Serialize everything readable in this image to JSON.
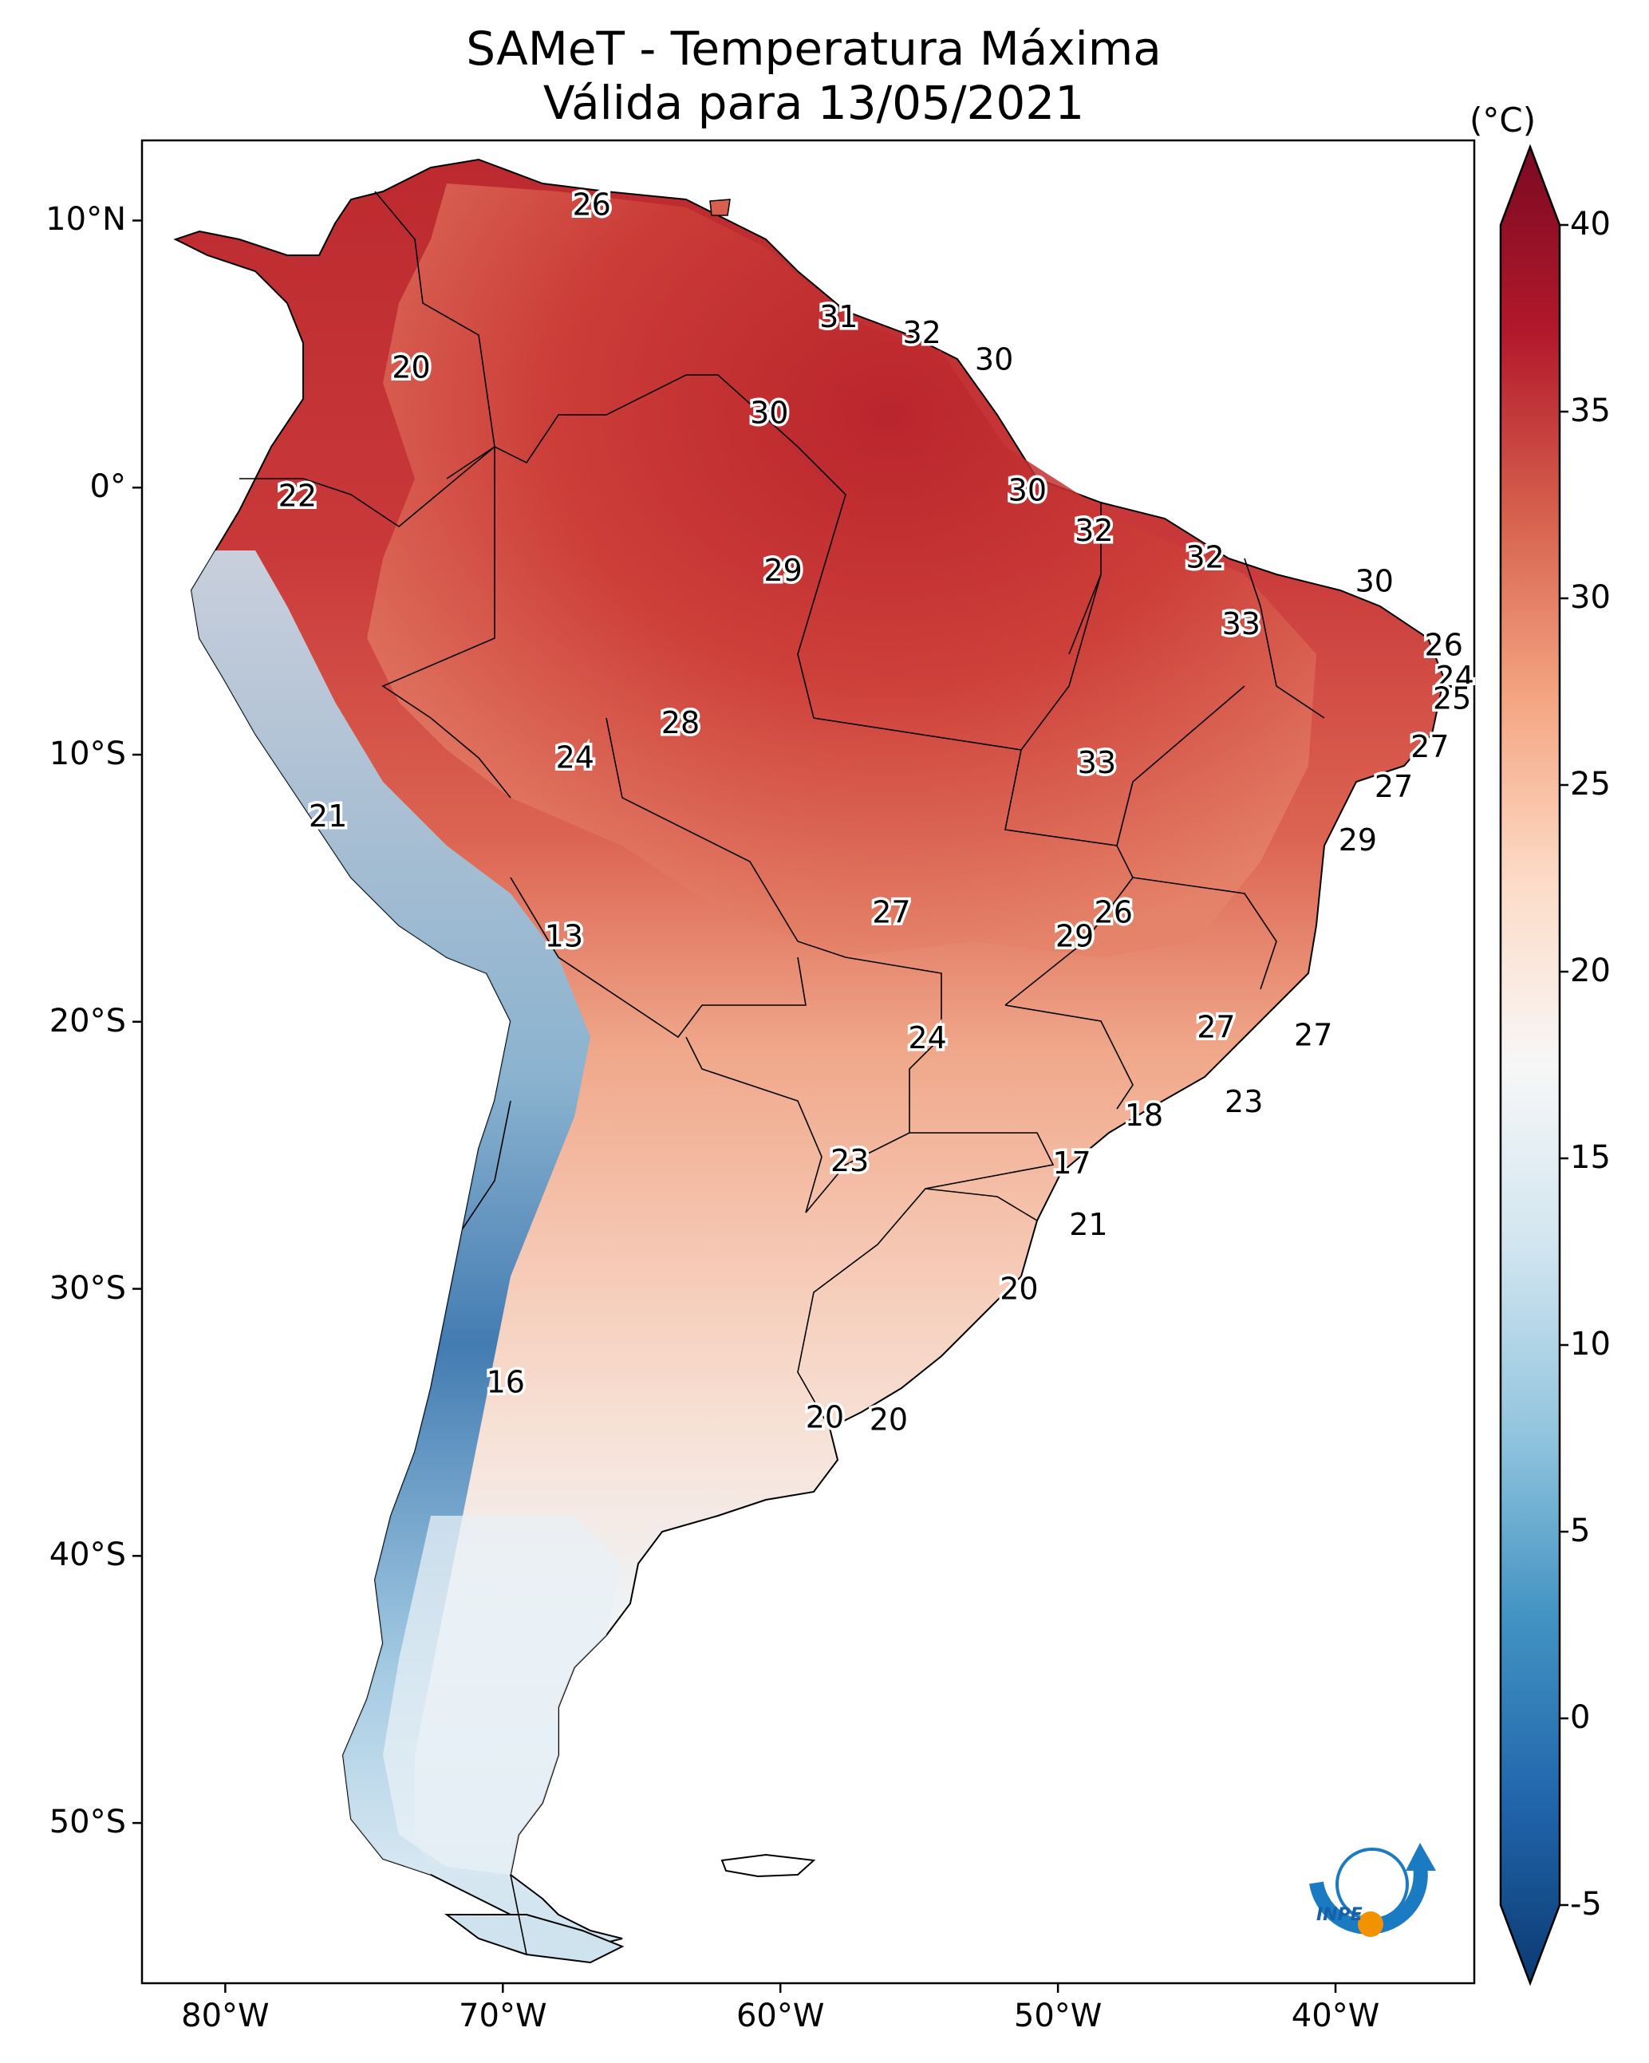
{
  "title": {
    "line1": "SAMeT - Temperatura Máxima",
    "line2": "Válida para 13/05/2021"
  },
  "colorbar": {
    "units": "(°C)",
    "ticks": [
      40,
      35,
      30,
      25,
      20,
      15,
      10,
      5,
      0,
      -5
    ],
    "range": [
      -5,
      40
    ],
    "colors": [
      "#08306b",
      "#2166ac",
      "#4393c3",
      "#92c5de",
      "#d1e5f0",
      "#f7f7f7",
      "#fddbc7",
      "#f4a582",
      "#d6604d",
      "#b2182b",
      "#67001f"
    ]
  },
  "axes": {
    "lon_labels": [
      "80°W",
      "70°W",
      "60°W",
      "50°W",
      "40°W"
    ],
    "lat_labels": [
      "10°N",
      "0°",
      "10°S",
      "20°S",
      "30°S",
      "40°S",
      "50°S"
    ],
    "lon_values": [
      -80,
      -70,
      -60,
      -50,
      -40
    ],
    "lat_values": [
      10,
      0,
      -10,
      -20,
      -30,
      -40,
      -50
    ],
    "extent": {
      "lon": [
        -83,
        -35
      ],
      "lat": [
        -56,
        13
      ]
    }
  },
  "value_labels": [
    {
      "text": "26",
      "lon": -66.8,
      "lat": 10.6
    },
    {
      "text": "31",
      "lon": -57.9,
      "lat": 6.4
    },
    {
      "text": "32",
      "lon": -54.9,
      "lat": 5.8
    },
    {
      "text": "30",
      "lon": -52.3,
      "lat": 4.8
    },
    {
      "text": "20",
      "lon": -73.3,
      "lat": 4.5
    },
    {
      "text": "30",
      "lon": -60.4,
      "lat": 2.8
    },
    {
      "text": "22",
      "lon": -77.4,
      "lat": -0.3
    },
    {
      "text": "30",
      "lon": -51.1,
      "lat": -0.1
    },
    {
      "text": "32",
      "lon": -48.7,
      "lat": -1.6
    },
    {
      "text": "32",
      "lon": -44.7,
      "lat": -2.6
    },
    {
      "text": "29",
      "lon": -59.9,
      "lat": -3.1
    },
    {
      "text": "30",
      "lon": -38.6,
      "lat": -3.5
    },
    {
      "text": "33",
      "lon": -43.4,
      "lat": -5.1
    },
    {
      "text": "26",
      "lon": -36.1,
      "lat": -5.9
    },
    {
      "text": "24",
      "lon": -35.7,
      "lat": -7.1
    },
    {
      "text": "25",
      "lon": -35.8,
      "lat": -7.9
    },
    {
      "text": "28",
      "lon": -63.6,
      "lat": -8.8
    },
    {
      "text": "27",
      "lon": -36.6,
      "lat": -9.7
    },
    {
      "text": "24",
      "lon": -67.4,
      "lat": -10.1
    },
    {
      "text": "33",
      "lon": -48.6,
      "lat": -10.3
    },
    {
      "text": "27",
      "lon": -37.9,
      "lat": -11.2
    },
    {
      "text": "21",
      "lon": -76.3,
      "lat": -12.3
    },
    {
      "text": "29",
      "lon": -39.2,
      "lat": -13.2
    },
    {
      "text": "27",
      "lon": -56.0,
      "lat": -15.9
    },
    {
      "text": "26",
      "lon": -48.0,
      "lat": -15.9
    },
    {
      "text": "13",
      "lon": -67.8,
      "lat": -16.8
    },
    {
      "text": "29",
      "lon": -49.4,
      "lat": -16.8
    },
    {
      "text": "27",
      "lon": -44.3,
      "lat": -20.2
    },
    {
      "text": "27",
      "lon": -40.8,
      "lat": -20.5
    },
    {
      "text": "24",
      "lon": -54.7,
      "lat": -20.6
    },
    {
      "text": "23",
      "lon": -43.3,
      "lat": -23.0
    },
    {
      "text": "18",
      "lon": -46.9,
      "lat": -23.5
    },
    {
      "text": "23",
      "lon": -57.5,
      "lat": -25.2
    },
    {
      "text": "17",
      "lon": -49.5,
      "lat": -25.3
    },
    {
      "text": "21",
      "lon": -48.9,
      "lat": -27.6
    },
    {
      "text": "20",
      "lon": -51.4,
      "lat": -30.0
    },
    {
      "text": "16",
      "lon": -69.9,
      "lat": -33.5
    },
    {
      "text": "20",
      "lon": -58.4,
      "lat": -34.8
    },
    {
      "text": "20",
      "lon": -56.1,
      "lat": -34.9
    }
  ],
  "logo": {
    "text": "INPE",
    "colors": {
      "blue": "#1a7bc2",
      "orange": "#f39200"
    }
  }
}
